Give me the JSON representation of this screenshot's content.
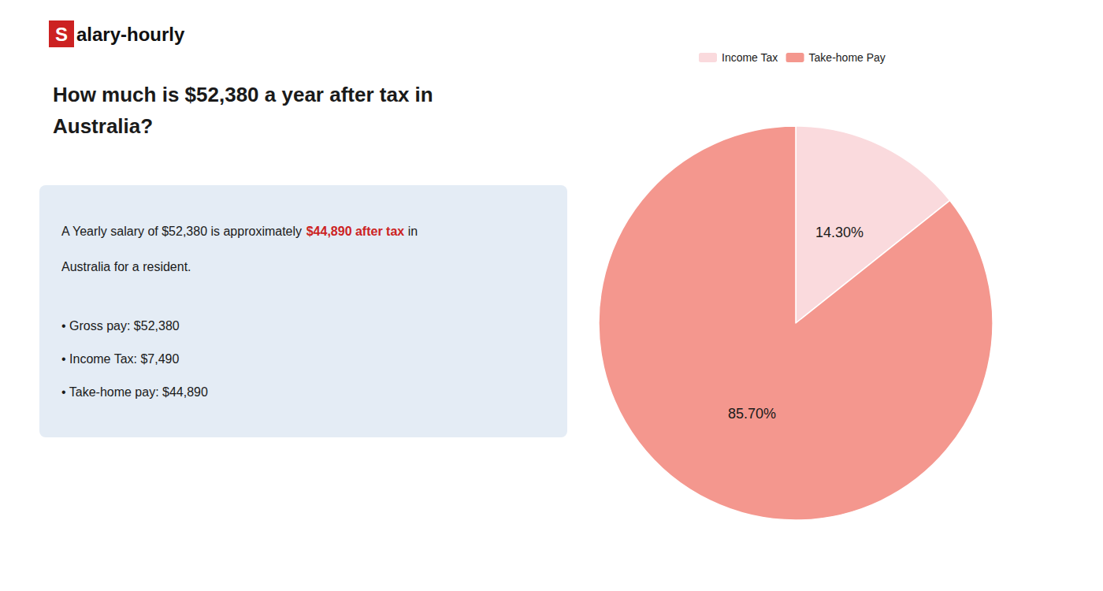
{
  "chart_data": {
    "type": "pie",
    "title": "How much is $52,380 a year after tax in\nAustralia?",
    "annotations": [
      [
        {
          "text": "S",
          "color": "#cc2222"
        },
        {
          "text": "alary-hourly"
        }
      ],
      [
        {
          "text": "A Yearly salary of $52,380 is approximately "
        },
        {
          "text": "$44,890 after tax",
          "color": "#cc2222"
        },
        {
          "text": " in"
        }
      ],
      [
        {
          "text": "Australia for a resident."
        }
      ],
      [
        {
          "text": "• Gross pay: $52,380"
        }
      ],
      [
        {
          "text": "• Income Tax: $7,490"
        }
      ],
      [
        {
          "text": "• Take-home pay: $44,890"
        }
      ]
    ],
    "categories": [
      "Income Tax",
      "Take-home Pay"
    ],
    "values": [
      14.3,
      85.7
    ],
    "value_labels": [
      "14.30%",
      "85.70%"
    ],
    "colors": [
      "#fadadd",
      "#f4978e"
    ],
    "data_labels": true,
    "legend": "top"
  }
}
